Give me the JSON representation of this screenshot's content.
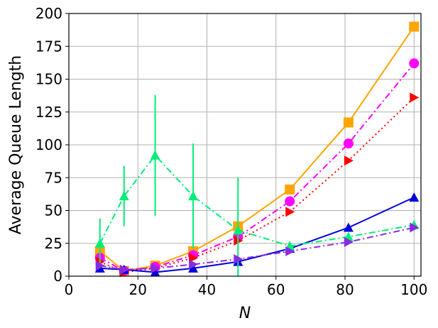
{
  "chart_data": {
    "type": "line",
    "title": "",
    "xlabel": "N",
    "ylabel": "Average Queue Length",
    "xlim": [
      0,
      102
    ],
    "ylim": [
      0,
      200
    ],
    "xticks": [
      0,
      20,
      40,
      60,
      80,
      100
    ],
    "yticks": [
      0,
      25,
      50,
      75,
      100,
      125,
      150,
      175,
      200
    ],
    "grid": true,
    "x": [
      9,
      16,
      25,
      36,
      49,
      64,
      81,
      100
    ],
    "series": [
      {
        "color": "#FFA500",
        "linestyle": "solid",
        "marker": "square",
        "values": [
          19,
          4,
          8,
          19,
          38,
          66,
          117,
          190
        ]
      },
      {
        "color": "#FF00FF",
        "linestyle": "dashdot",
        "marker": "circle",
        "values": [
          14,
          4,
          7,
          16,
          30,
          57,
          101,
          162
        ]
      },
      {
        "color": "#FF0000",
        "linestyle": "dotted",
        "marker": "triangle-right",
        "values": [
          11,
          3,
          6,
          14,
          27,
          49,
          88,
          136
        ]
      },
      {
        "color": "#0000DD",
        "linestyle": "solid",
        "marker": "triangle-up",
        "values": [
          6,
          5,
          3,
          6,
          11,
          21,
          37,
          60
        ]
      },
      {
        "color": "#00EE77",
        "linestyle": "dashdot",
        "marker": "triangle-up",
        "values": [
          25,
          61,
          92,
          61,
          35,
          23,
          30,
          39
        ],
        "errors": [
          19,
          23,
          46,
          40,
          40,
          0,
          0,
          0
        ]
      },
      {
        "color": "#8A2BE2",
        "linestyle": "dashdot",
        "marker": "triangle-right",
        "values": [
          8,
          5,
          6,
          9,
          13,
          19,
          26,
          37
        ]
      }
    ]
  }
}
